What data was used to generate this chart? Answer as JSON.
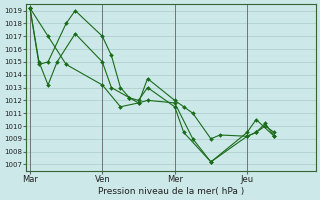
{
  "xlabel": "Pression niveau de la mer( hPa )",
  "background_color": "#cce8e8",
  "grid_color": "#aacccc",
  "line_color": "#1a6b1a",
  "vline_color": "#666666",
  "ylim": [
    1006.5,
    1019.5
  ],
  "yticks": [
    1007,
    1008,
    1009,
    1010,
    1011,
    1012,
    1013,
    1014,
    1015,
    1016,
    1017,
    1018,
    1019
  ],
  "xtick_labels": [
    "Mar",
    "Ven",
    "Mer",
    "Jeu"
  ],
  "xtick_positions": [
    0,
    40,
    80,
    120
  ],
  "xlim": [
    -2,
    158
  ],
  "series_x": [
    [
      0,
      10,
      20,
      40,
      50,
      60,
      65,
      80,
      85,
      90,
      100,
      105,
      120,
      125,
      130,
      135
    ],
    [
      0,
      5,
      10,
      20,
      25,
      40,
      45,
      50,
      55,
      60,
      65,
      80,
      85,
      100,
      120,
      125,
      130,
      135
    ],
    [
      0,
      5,
      10,
      15,
      25,
      40,
      45,
      55,
      60,
      65,
      80,
      90,
      100,
      120,
      125,
      135
    ]
  ],
  "series_y": [
    [
      1019.2,
      1017.0,
      1014.8,
      1013.2,
      1011.5,
      1011.8,
      1013.7,
      1012.0,
      1011.5,
      1011.0,
      1009.0,
      1009.3,
      1009.2,
      1009.5,
      1010.0,
      1009.5
    ],
    [
      1019.2,
      1014.8,
      1015.0,
      1018.0,
      1019.0,
      1017.0,
      1015.5,
      1013.0,
      1012.2,
      1012.0,
      1013.0,
      1011.5,
      1009.5,
      1007.2,
      1009.2,
      1009.5,
      1010.2,
      1009.2
    ],
    [
      1019.2,
      1015.0,
      1013.2,
      1015.0,
      1017.2,
      1015.0,
      1013.0,
      1012.2,
      1011.8,
      1012.0,
      1011.8,
      1009.0,
      1007.2,
      1009.5,
      1010.5,
      1009.2
    ]
  ]
}
